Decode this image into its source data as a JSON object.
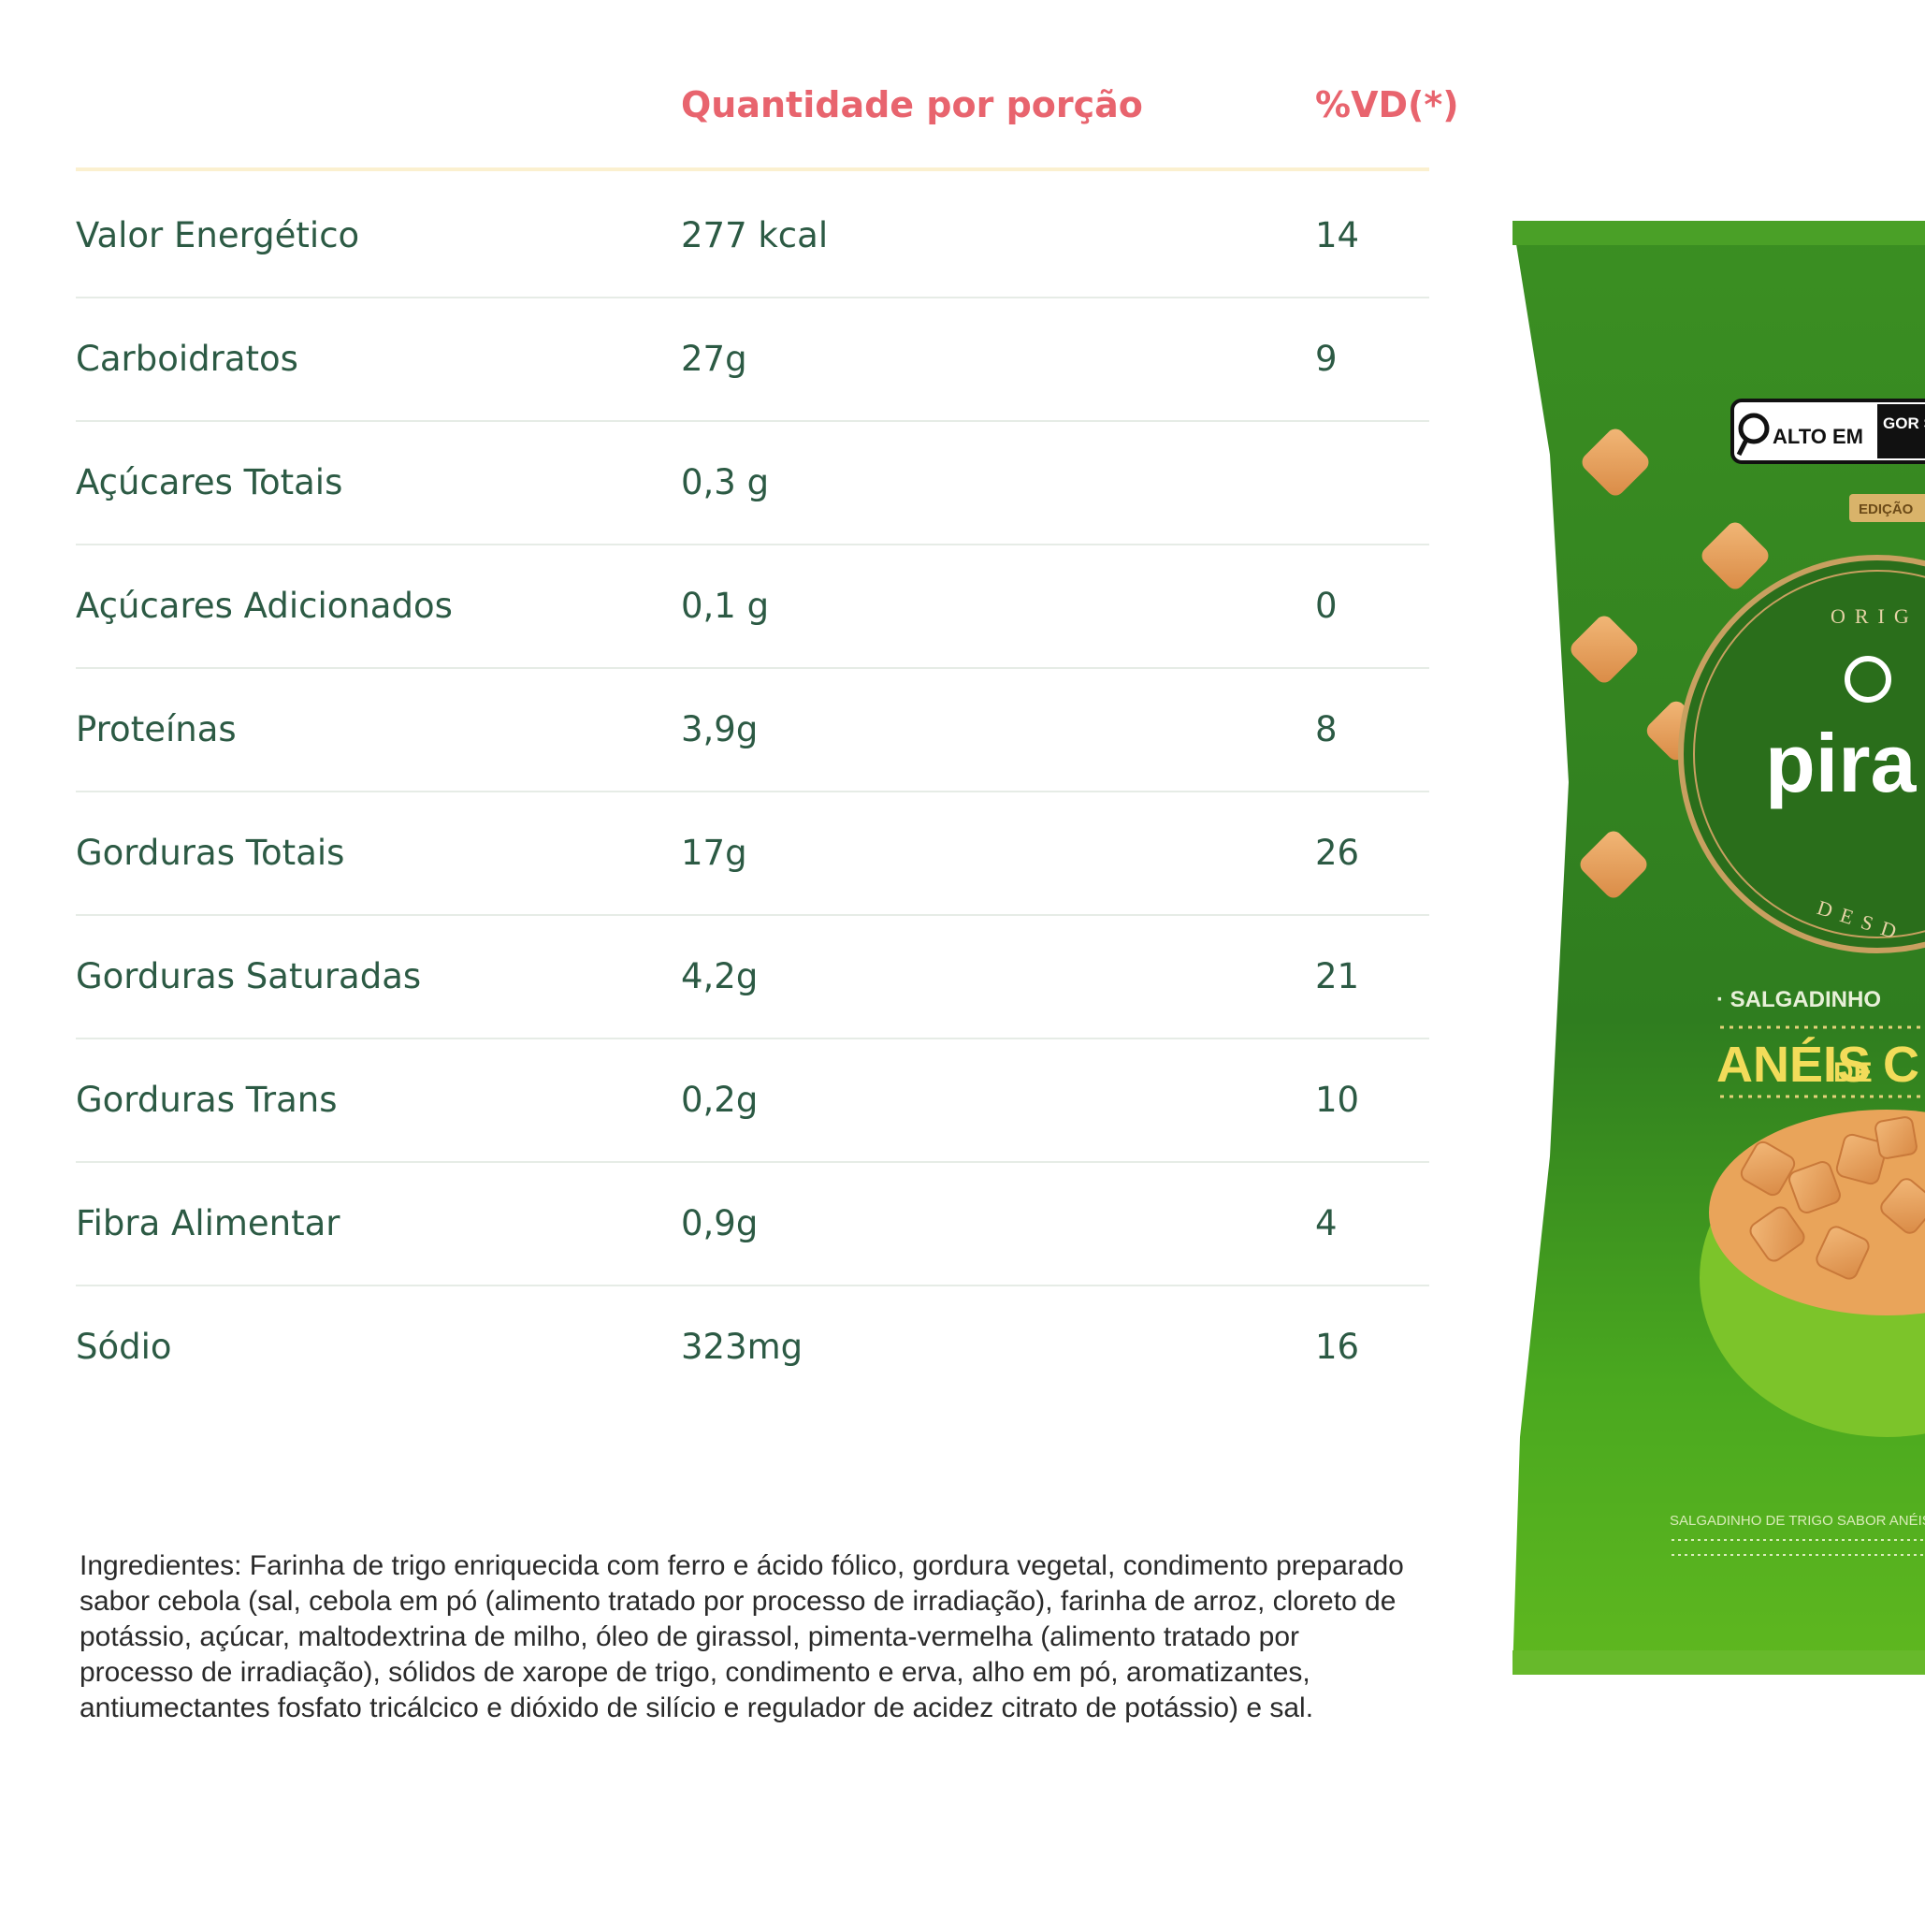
{
  "header": {
    "quantity_label": "Quantidade por porção",
    "dv_label": "%VD(*)"
  },
  "rows": [
    {
      "name": "Valor Energético",
      "quantity": "277 kcal",
      "dv": "14"
    },
    {
      "name": "Carboidratos",
      "quantity": "27g",
      "dv": "9"
    },
    {
      "name": "Açúcares Totais",
      "quantity": "0,3 g",
      "dv": ""
    },
    {
      "name": "Açúcares Adicionados",
      "quantity": "0,1 g",
      "dv": "0"
    },
    {
      "name": "Proteínas",
      "quantity": "3,9g",
      "dv": "8"
    },
    {
      "name": "Gorduras Totais",
      "quantity": "17g",
      "dv": "26"
    },
    {
      "name": "Gorduras Saturadas",
      "quantity": "4,2g",
      "dv": "21"
    },
    {
      "name": "Gorduras Trans",
      "quantity": "0,2g",
      "dv": "10"
    },
    {
      "name": "Fibra Alimentar",
      "quantity": "0,9g",
      "dv": "4"
    },
    {
      "name": "Sódio",
      "quantity": "323mg",
      "dv": "16"
    }
  ],
  "ingredients": "Ingredientes: Farinha de trigo enriquecida com ferro e ácido fólico, gordura vegetal, condimento preparado sabor cebola (sal, cebola em pó (alimento tratado por processo de irradiação), farinha de arroz, cloreto de potássio, açúcar, maltodextrina de milho, óleo de girassol, pimenta-vermelha (alimento tratado por processo de irradiação), sólidos de xarope de trigo, condimento e erva, alho em pó, aromatizantes, antiumectantes fosfato tricálcico e dióxido de silício e regulador de acidez citrato de potássio) e sal.",
  "package": {
    "warning_alto_em": "ALTO EM",
    "warning_rest": "GOR SATU",
    "edition": "EDIÇÃO",
    "seal_top": "ORIG",
    "brand": "pira",
    "seal_bottom": "DESD",
    "subtitle": "· SALGADINHO",
    "flavor_a": "ANÉIS",
    "flavor_de": "DE",
    "flavor_b": "C",
    "fine_print": "SALGADINHO DE TRIGO SABOR ANÉIS DE",
    "colors": {
      "bag_dark": "#2f7d1f",
      "bag_mid": "#3e9a22",
      "bag_light": "#6cc11f",
      "snack": "#e6a15e"
    }
  }
}
